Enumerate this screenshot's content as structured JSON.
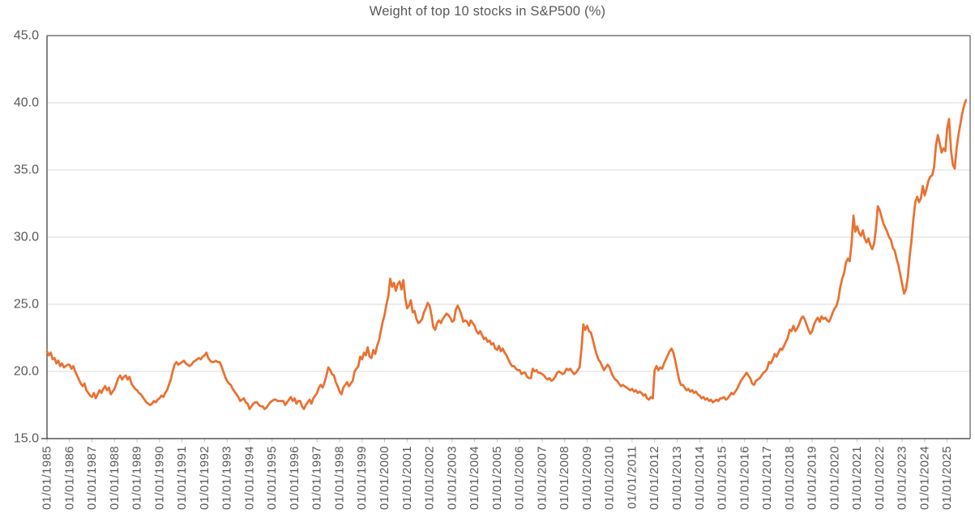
{
  "title": "Weight of top 10 stocks in S&P500 (%)",
  "colors": {
    "series": "#E97132",
    "gridline": "#D9D9D9",
    "axis_dark": "#333333",
    "border_gray": "#595959",
    "tick_mark": "#BFBFBF",
    "label_text": "#595959",
    "background": "#FFFFFF"
  },
  "chart_data": {
    "type": "line",
    "title": "Weight of top 10 stocks in S&P500 (%)",
    "xlabel": "",
    "ylabel": "",
    "x_start": "01/01/1985",
    "frequency": "monthly",
    "ylim": [
      15,
      45
    ],
    "grid": "horizontal",
    "legend": "none",
    "y_ticks": [
      15,
      20,
      25,
      30,
      35,
      40,
      45
    ],
    "y_tick_labels": [
      "15.0",
      "20.0",
      "25.0",
      "30.0",
      "35.0",
      "40.0",
      "45.0"
    ],
    "x_tick_labels": [
      "01/01/1985",
      "01/01/1986",
      "01/01/1987",
      "01/01/1988",
      "01/01/1989",
      "01/01/1990",
      "01/01/1991",
      "01/01/1992",
      "01/01/1993",
      "01/01/1994",
      "01/01/1995",
      "01/01/1996",
      "01/01/1997",
      "01/01/1998",
      "01/01/1999",
      "01/01/2000",
      "01/01/2001",
      "01/01/2002",
      "01/01/2003",
      "01/01/2004",
      "01/01/2005",
      "01/01/2006",
      "01/01/2007",
      "01/01/2008",
      "01/01/2009",
      "01/01/2010",
      "01/01/2011",
      "01/01/2012",
      "01/01/2013",
      "01/01/2014",
      "01/01/2015",
      "01/01/2016",
      "01/01/2017",
      "01/01/2018",
      "01/01/2019",
      "01/01/2020",
      "01/01/2021",
      "01/01/2022",
      "01/01/2023",
      "01/01/2024",
      "01/01/2025"
    ],
    "series": [
      {
        "name": "Weight of top 10 stocks in S&P500 (%)",
        "values": [
          21.5,
          21.2,
          21.4,
          20.9,
          21.0,
          20.6,
          20.8,
          20.4,
          20.6,
          20.3,
          20.4,
          20.5,
          20.5,
          20.2,
          20.4,
          20.0,
          19.7,
          19.4,
          19.1,
          18.9,
          19.1,
          18.6,
          18.4,
          18.2,
          18.1,
          18.4,
          18.0,
          18.3,
          18.6,
          18.4,
          18.7,
          18.9,
          18.6,
          18.8,
          18.3,
          18.5,
          18.7,
          19.1,
          19.5,
          19.7,
          19.4,
          19.6,
          19.7,
          19.4,
          19.6,
          19.1,
          18.9,
          18.7,
          18.6,
          18.4,
          18.3,
          18.1,
          17.9,
          17.7,
          17.6,
          17.5,
          17.6,
          17.8,
          17.7,
          17.9,
          18.0,
          18.2,
          18.1,
          18.4,
          18.6,
          19.0,
          19.4,
          20.0,
          20.5,
          20.7,
          20.5,
          20.6,
          20.7,
          20.8,
          20.6,
          20.5,
          20.4,
          20.5,
          20.7,
          20.8,
          20.9,
          21.0,
          20.9,
          21.1,
          21.2,
          21.4,
          21.0,
          20.8,
          20.7,
          20.7,
          20.8,
          20.7,
          20.7,
          20.4,
          20.0,
          19.6,
          19.3,
          19.1,
          19.0,
          18.7,
          18.5,
          18.3,
          18.1,
          17.8,
          17.9,
          18.0,
          17.7,
          17.6,
          17.2,
          17.4,
          17.6,
          17.7,
          17.7,
          17.5,
          17.4,
          17.4,
          17.2,
          17.3,
          17.5,
          17.7,
          17.8,
          17.9,
          17.9,
          17.8,
          17.8,
          17.8,
          17.8,
          17.5,
          17.7,
          17.9,
          18.1,
          17.8,
          18.0,
          17.6,
          17.8,
          17.8,
          17.4,
          17.2,
          17.5,
          17.7,
          17.9,
          17.6,
          18.0,
          18.2,
          18.4,
          18.8,
          19.0,
          18.8,
          19.2,
          19.7,
          20.3,
          20.1,
          19.8,
          19.7,
          19.2,
          18.9,
          18.5,
          18.3,
          18.8,
          19.0,
          19.2,
          18.9,
          19.1,
          19.3,
          20.0,
          20.2,
          20.4,
          21.1,
          20.9,
          21.4,
          21.2,
          21.8,
          21.1,
          21.0,
          21.6,
          21.3,
          21.9,
          22.3,
          23.0,
          23.7,
          24.2,
          25.0,
          25.6,
          26.9,
          26.3,
          26.6,
          26.0,
          26.5,
          26.7,
          26.1,
          26.8,
          25.5,
          24.7,
          24.9,
          25.3,
          24.4,
          24.5,
          23.9,
          23.6,
          23.7,
          23.9,
          24.4,
          24.7,
          25.1,
          24.9,
          24.2,
          23.3,
          23.1,
          23.6,
          23.8,
          23.6,
          23.9,
          24.1,
          24.3,
          24.2,
          24.0,
          23.7,
          23.8,
          24.6,
          24.9,
          24.6,
          24.2,
          23.7,
          23.8,
          23.7,
          23.4,
          23.8,
          23.6,
          23.4,
          23.0,
          22.8,
          23.0,
          22.7,
          22.4,
          22.5,
          22.2,
          22.3,
          22.0,
          22.1,
          21.7,
          21.6,
          21.9,
          21.5,
          21.7,
          21.4,
          21.2,
          20.9,
          20.6,
          20.4,
          20.4,
          20.2,
          20.1,
          20.1,
          19.8,
          19.9,
          19.9,
          19.6,
          19.5,
          19.5,
          20.2,
          20.0,
          20.1,
          19.9,
          19.9,
          19.8,
          19.7,
          19.5,
          19.4,
          19.5,
          19.3,
          19.4,
          19.6,
          19.9,
          20.0,
          19.9,
          19.8,
          19.9,
          20.2,
          20.1,
          20.2,
          20.0,
          19.8,
          19.9,
          20.1,
          20.3,
          21.7,
          23.5,
          23.1,
          23.4,
          23.0,
          22.9,
          22.4,
          21.8,
          21.3,
          20.9,
          20.7,
          20.4,
          20.1,
          20.3,
          20.5,
          20.3,
          19.9,
          19.6,
          19.4,
          19.3,
          19.1,
          18.9,
          19.0,
          18.9,
          18.8,
          18.7,
          18.6,
          18.7,
          18.5,
          18.6,
          18.4,
          18.5,
          18.4,
          18.2,
          18.3,
          18.0,
          17.9,
          18.1,
          18.0,
          20.1,
          20.4,
          20.1,
          20.3,
          20.2,
          20.6,
          20.9,
          21.2,
          21.5,
          21.7,
          21.4,
          20.8,
          20.1,
          19.4,
          19.0,
          19.0,
          18.8,
          18.6,
          18.7,
          18.5,
          18.6,
          18.4,
          18.5,
          18.3,
          18.2,
          18.0,
          18.1,
          17.9,
          18.0,
          17.8,
          17.9,
          17.7,
          17.8,
          17.9,
          17.8,
          18.0,
          18.0,
          18.1,
          17.9,
          18.0,
          18.2,
          18.4,
          18.3,
          18.5,
          18.7,
          19.0,
          19.3,
          19.5,
          19.7,
          19.9,
          19.7,
          19.5,
          19.1,
          19.0,
          19.3,
          19.4,
          19.5,
          19.7,
          19.9,
          20.0,
          20.2,
          20.7,
          20.6,
          20.9,
          21.3,
          21.1,
          21.4,
          21.7,
          21.6,
          21.9,
          22.2,
          22.5,
          23.1,
          23.0,
          23.4,
          23.0,
          23.2,
          23.5,
          23.9,
          24.1,
          23.9,
          23.5,
          23.1,
          22.8,
          23.0,
          23.5,
          23.8,
          24.0,
          23.7,
          24.1,
          23.9,
          24.0,
          23.8,
          23.7,
          24.0,
          24.4,
          24.7,
          24.9,
          25.4,
          26.3,
          26.9,
          27.3,
          28.1,
          28.4,
          28.2,
          29.5,
          31.6,
          30.4,
          30.8,
          30.3,
          30.1,
          30.5,
          29.9,
          29.6,
          29.9,
          29.4,
          29.1,
          29.5,
          30.6,
          32.3,
          32.0,
          31.5,
          31.0,
          30.7,
          30.4,
          30.0,
          29.8,
          29.2,
          29.0,
          28.4,
          27.9,
          27.2,
          26.5,
          25.8,
          26.1,
          27.0,
          28.6,
          29.8,
          31.4,
          32.6,
          33.0,
          32.6,
          32.9,
          33.8,
          33.1,
          33.6,
          34.2,
          34.5,
          34.6,
          35.2,
          36.8,
          37.6,
          37.0,
          36.3,
          36.6,
          36.4,
          38.1,
          38.8,
          36.5,
          35.4,
          35.1,
          36.6,
          37.6,
          38.4,
          39.2,
          39.8,
          40.2
        ]
      }
    ]
  }
}
